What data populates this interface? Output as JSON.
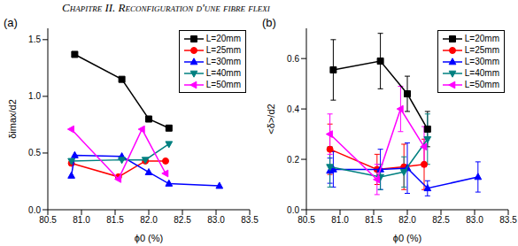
{
  "page_header": "Chapitre II. Reconfiguration d'une fibre flexi",
  "chart_data": [
    {
      "type": "scatter",
      "title": "(a)",
      "x_label": "ϕ0 (%)",
      "y_label": "δimax/d2",
      "xlim": [
        80.5,
        83.5
      ],
      "xticks": [
        80.5,
        {
          "value": 81,
          "label": "81.0"
        },
        81.5,
        {
          "value": 82,
          "label": "82.0"
        },
        82.5,
        {
          "value": 83,
          "label": "83.0"
        },
        83.5
      ],
      "ylim": [
        0,
        1.6
      ],
      "yticks": [
        {
          "value": 0,
          "label": "0.0"
        },
        0.5,
        {
          "value": 1,
          "label": "1.0"
        },
        1.5
      ],
      "grid": false,
      "legend": "upper right",
      "series": [
        {
          "name": "L=20mm",
          "color": "#000000",
          "marker": "square",
          "line_style": "solid",
          "x": [
            80.9,
            81.6,
            82.0,
            82.3
          ],
          "values": [
            1.37,
            1.15,
            0.8,
            0.72
          ]
        },
        {
          "name": "L=25mm",
          "color": "#ff0000",
          "marker": "circle",
          "line_style": "solid",
          "x": [
            80.85,
            81.55,
            81.95,
            82.25
          ],
          "values": [
            0.41,
            0.29,
            0.43,
            0.43
          ]
        },
        {
          "name": "L=30mm",
          "color": "#0000ff",
          "marker": "triangle",
          "line_style": "solid",
          "x": [
            80.85,
            80.9,
            81.6,
            82.0,
            82.3,
            83.05
          ],
          "values": [
            0.3,
            0.48,
            0.47,
            0.33,
            0.23,
            0.21
          ]
        },
        {
          "name": "L=40mm",
          "color": "#008080",
          "marker": "triangle-down",
          "line_style": "solid",
          "x": [
            80.85,
            81.6,
            81.95,
            82.3
          ],
          "values": [
            0.43,
            0.44,
            0.44,
            0.58
          ]
        },
        {
          "name": "L=50mm",
          "color": "#ff00ff",
          "marker": "triangle-left",
          "line_style": "solid",
          "x": [
            80.85,
            81.55,
            81.9,
            82.25
          ],
          "values": [
            0.71,
            0.27,
            0.71,
            0.32
          ]
        }
      ]
    },
    {
      "type": "scatter",
      "title": "(b)",
      "x_label": "ϕ0 (%)",
      "y_label": "<δ>/d2",
      "xlim": [
        80.5,
        83.5
      ],
      "xticks": [
        80.5,
        {
          "value": 81,
          "label": "81.0"
        },
        81.5,
        {
          "value": 82,
          "label": "82.0"
        },
        82.5,
        {
          "value": 83,
          "label": "83.0"
        },
        83.5
      ],
      "ylim": [
        0,
        0.72
      ],
      "yticks": [
        {
          "value": 0,
          "label": "0.0"
        },
        0.2,
        0.4,
        0.6
      ],
      "grid": false,
      "legend": "upper right",
      "series": [
        {
          "name": "L=20mm",
          "color": "#000000",
          "marker": "square",
          "line_style": "solid",
          "x": [
            80.9,
            81.6,
            82.0,
            82.3
          ],
          "values": [
            0.555,
            0.59,
            0.46,
            0.32
          ],
          "errors": [
            0.12,
            0.11,
            0.07,
            0.07
          ]
        },
        {
          "name": "L=25mm",
          "color": "#ff0000",
          "marker": "circle",
          "line_style": "solid",
          "x": [
            80.85,
            81.55,
            81.95,
            82.25
          ],
          "values": [
            0.24,
            0.16,
            0.17,
            0.18
          ],
          "errors": [
            0.1,
            0.06,
            0.09,
            0.1
          ]
        },
        {
          "name": "L=30mm",
          "color": "#0000ff",
          "marker": "triangle",
          "line_style": "solid",
          "x": [
            80.85,
            80.9,
            81.6,
            82.0,
            82.3,
            83.05
          ],
          "values": [
            0.155,
            0.16,
            0.16,
            0.165,
            0.085,
            0.13
          ],
          "errors": [
            0.05,
            0.07,
            0.08,
            0.1,
            0.03,
            0.06
          ]
        },
        {
          "name": "L=40mm",
          "color": "#008080",
          "marker": "triangle-down",
          "line_style": "solid",
          "x": [
            80.85,
            81.6,
            81.95,
            82.3
          ],
          "values": [
            0.17,
            0.13,
            0.15,
            0.28
          ],
          "errors": [
            0.08,
            0.05,
            0.06,
            0.1
          ]
        },
        {
          "name": "L=50mm",
          "color": "#ff00ff",
          "marker": "triangle-left",
          "line_style": "solid",
          "x": [
            80.85,
            81.55,
            81.9,
            82.25
          ],
          "values": [
            0.3,
            0.12,
            0.4,
            0.25
          ],
          "errors": [
            0.08,
            0.06,
            0.09,
            0.08
          ]
        }
      ]
    }
  ]
}
